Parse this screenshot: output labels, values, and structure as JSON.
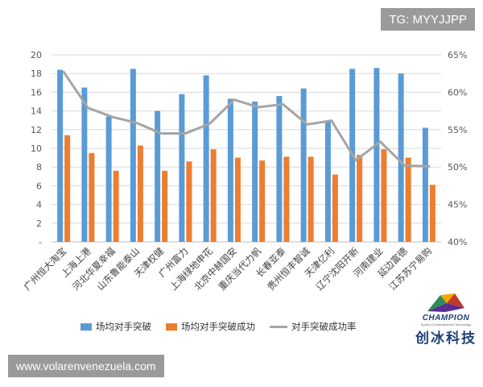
{
  "watermark_tg": "TG: MYYJJPP",
  "watermark_site": "www.volarenvenezuela.com",
  "brand": {
    "name": "CHAMPION",
    "tagline": "Sports & Entertainment Technology",
    "cn_name": "创冰科技"
  },
  "colors": {
    "blue": "#5b9bd5",
    "orange": "#ed7d31",
    "gray": "#a5a5a5",
    "axis_text": "#595959",
    "grid": "#d9d9d9"
  },
  "chart_data": {
    "type": "bar+line",
    "title": "",
    "categories": [
      "广州恒大淘宝",
      "上海上港",
      "河北华夏幸福",
      "山东鲁能泰山",
      "天津权健",
      "广州富力",
      "上海绿地申花",
      "北京中赫国安",
      "重庆当代力帆",
      "长春亚泰",
      "贵州恒丰智诚",
      "天津亿利",
      "辽宁沈阳开新",
      "河南建业",
      "延边富德",
      "江苏苏宁易购"
    ],
    "series": [
      {
        "name": "场均对手突破",
        "type": "bar",
        "axis": "left",
        "values": [
          18.4,
          16.5,
          13.4,
          18.5,
          14.0,
          15.8,
          17.8,
          15.3,
          15.0,
          15.6,
          16.4,
          12.9,
          18.5,
          18.6,
          18.0,
          12.2
        ]
      },
      {
        "name": "场均对手突破成功",
        "type": "bar",
        "axis": "left",
        "values": [
          11.4,
          9.5,
          7.6,
          10.3,
          7.6,
          8.6,
          9.9,
          9.0,
          8.7,
          9.1,
          9.1,
          7.2,
          9.3,
          9.9,
          9.0,
          6.1
        ]
      },
      {
        "name": "对手突破成功率",
        "type": "line",
        "axis": "right",
        "unit": "%",
        "values": [
          62.7,
          57.9,
          56.7,
          55.9,
          54.5,
          54.5,
          55.8,
          59.0,
          58.0,
          58.4,
          55.7,
          56.2,
          50.9,
          53.4,
          50.2,
          50.1
        ]
      }
    ],
    "y_left": {
      "min": 0,
      "max": 20,
      "ticks": [
        "-",
        "2",
        "4",
        "6",
        "8",
        "10",
        "12",
        "14",
        "16",
        "18",
        "20"
      ]
    },
    "y_right": {
      "min": 40,
      "max": 65,
      "ticks": [
        "40%",
        "45%",
        "50%",
        "55%",
        "60%",
        "65%"
      ]
    },
    "grid": true,
    "legend_position": "bottom"
  }
}
